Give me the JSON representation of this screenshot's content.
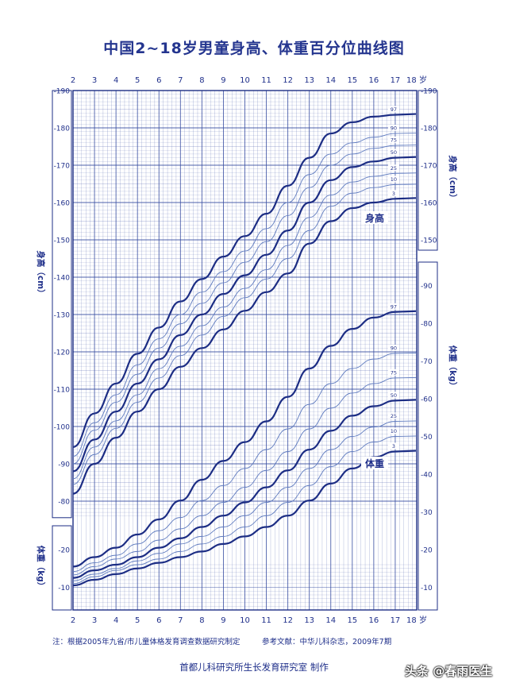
{
  "title": "中国2~18岁男童身高、体重百分位曲线图",
  "footnote_left": "注：根据2005年九省/市儿童体格发育调查数据研究制定",
  "footnote_right": "参考文献：中华儿科杂志，2009年7期",
  "maker": "首都儿科研究所生长发育研究室  制作",
  "watermark": "头条 @春雨医生",
  "colors": {
    "grid": "#3a4fa3",
    "curve": "#1c2d84",
    "thin_curve": "#5f7bbf",
    "text": "#1f2f8a"
  },
  "chart_data": [
    {
      "type": "line",
      "name_label": "身高",
      "xlabel": "岁",
      "ylabel": "身高（cm）",
      "x_ticks": [
        2,
        3,
        4,
        5,
        6,
        7,
        8,
        9,
        10,
        11,
        12,
        13,
        14,
        15,
        16,
        17,
        18
      ],
      "x_tick_labels": [
        "2",
        "3",
        "4",
        "5",
        "6",
        "7",
        "8",
        "9",
        "10",
        "11",
        "12",
        "13",
        "14",
        "15",
        "16",
        "17",
        "18 岁"
      ],
      "y_ticks_left": [
        80,
        90,
        100,
        110,
        120,
        130,
        140,
        150,
        160,
        170,
        180,
        190
      ],
      "y_ticks_right": [
        150,
        160,
        170,
        180,
        190
      ],
      "xlim": [
        2,
        18
      ],
      "ylim": [
        76,
        190
      ],
      "series": [
        {
          "name": "3",
          "x": [
            2,
            3,
            4,
            5,
            6,
            7,
            8,
            9,
            10,
            11,
            12,
            13,
            14,
            15,
            16,
            17
          ],
          "values": [
            82,
            90,
            97,
            104,
            110,
            116,
            121,
            126,
            131,
            136,
            141,
            149,
            155,
            158.5,
            160,
            161
          ]
        },
        {
          "name": "10",
          "x": [
            2,
            3,
            4,
            5,
            6,
            7,
            8,
            9,
            10,
            11,
            12,
            13,
            14,
            15,
            16,
            17
          ],
          "values": [
            84.5,
            92.5,
            99.5,
            106.5,
            113,
            119,
            124.5,
            129.5,
            134.5,
            139.5,
            145,
            152.5,
            159,
            162.5,
            164,
            164.8
          ]
        },
        {
          "name": "25",
          "x": [
            2,
            3,
            4,
            5,
            6,
            7,
            8,
            9,
            10,
            11,
            12,
            13,
            14,
            15,
            16,
            17
          ],
          "values": [
            86,
            94.5,
            101.5,
            108.5,
            115.5,
            121.5,
            127,
            132,
            137,
            142,
            148.5,
            156,
            162,
            165.5,
            167,
            167.8
          ]
        },
        {
          "name": "50",
          "x": [
            2,
            3,
            4,
            5,
            6,
            7,
            8,
            9,
            10,
            11,
            12,
            13,
            14,
            15,
            16,
            17
          ],
          "values": [
            88,
            96.5,
            104,
            111.5,
            118,
            124.5,
            130,
            135.5,
            140.5,
            146,
            152.5,
            160,
            166,
            169.5,
            171,
            172
          ]
        },
        {
          "name": "75",
          "x": [
            2,
            3,
            4,
            5,
            6,
            7,
            8,
            9,
            10,
            11,
            12,
            13,
            14,
            15,
            16,
            17
          ],
          "values": [
            90,
            99,
            106.5,
            114,
            121,
            127.5,
            133,
            138.5,
            144,
            149.5,
            156.5,
            164,
            170,
            173,
            174.5,
            175.3
          ]
        },
        {
          "name": "90",
          "x": [
            2,
            3,
            4,
            5,
            6,
            7,
            8,
            9,
            10,
            11,
            12,
            13,
            14,
            15,
            16,
            17
          ],
          "values": [
            92,
            101,
            108.5,
            116.5,
            123.5,
            130,
            136,
            141.5,
            147,
            153,
            160,
            167.5,
            173,
            176,
            177.5,
            178.5
          ]
        },
        {
          "name": "97",
          "x": [
            2,
            3,
            4,
            5,
            6,
            7,
            8,
            9,
            10,
            11,
            12,
            13,
            14,
            15,
            16,
            17
          ],
          "values": [
            94.5,
            103.5,
            111.5,
            119.5,
            126.5,
            133.5,
            139.5,
            145.5,
            151,
            157,
            164.5,
            172,
            178.5,
            181.5,
            183,
            183.5
          ]
        }
      ]
    },
    {
      "type": "line",
      "name_label": "体重",
      "xlabel": "岁",
      "ylabel": "体重（kg）",
      "x_ticks": [
        2,
        3,
        4,
        5,
        6,
        7,
        8,
        9,
        10,
        11,
        12,
        13,
        14,
        15,
        16,
        17,
        18
      ],
      "y_ticks_left": [
        10,
        20
      ],
      "y_ticks_right": [
        10,
        20,
        30,
        40,
        50,
        60,
        70,
        80,
        90
      ],
      "xlim": [
        2,
        18
      ],
      "ylim": [
        4,
        94
      ],
      "series": [
        {
          "name": "3",
          "x": [
            2,
            3,
            4,
            5,
            6,
            7,
            8,
            9,
            10,
            11,
            12,
            13,
            14,
            15,
            16,
            17
          ],
          "values": [
            10.5,
            12,
            13.5,
            15,
            16.5,
            18,
            19.5,
            21.5,
            23.5,
            26,
            29,
            33,
            37.5,
            41.5,
            44.5,
            46
          ]
        },
        {
          "name": "10",
          "x": [
            2,
            3,
            4,
            5,
            6,
            7,
            8,
            9,
            10,
            11,
            12,
            13,
            14,
            15,
            16,
            17
          ],
          "values": [
            11,
            12.8,
            14.5,
            16,
            17.5,
            19.5,
            21.5,
            23.5,
            26,
            29,
            32.5,
            37,
            42,
            46,
            48.5,
            50
          ]
        },
        {
          "name": "25",
          "x": [
            2,
            3,
            4,
            5,
            6,
            7,
            8,
            9,
            10,
            11,
            12,
            13,
            14,
            15,
            16,
            17
          ],
          "values": [
            11.7,
            13.5,
            15,
            17,
            19,
            21.5,
            23.5,
            26,
            29,
            32.5,
            36.5,
            41.5,
            46.5,
            50,
            52.5,
            54
          ]
        },
        {
          "name": "50",
          "x": [
            2,
            3,
            4,
            5,
            6,
            7,
            8,
            9,
            10,
            11,
            12,
            13,
            14,
            15,
            16,
            17
          ],
          "values": [
            12.5,
            14.5,
            16,
            18,
            20.5,
            23,
            26,
            29,
            32.5,
            36.5,
            41,
            46.5,
            51.5,
            55.5,
            58,
            59.5
          ]
        },
        {
          "name": "75",
          "x": [
            2,
            3,
            4,
            5,
            6,
            7,
            8,
            9,
            10,
            11,
            12,
            13,
            14,
            15,
            16,
            17
          ],
          "values": [
            13.3,
            15.5,
            17.5,
            19.5,
            22.5,
            25.5,
            29,
            32.5,
            36.5,
            41,
            46,
            52,
            57.5,
            61.5,
            64,
            65.5
          ]
        },
        {
          "name": "90",
          "x": [
            2,
            3,
            4,
            5,
            6,
            7,
            8,
            9,
            10,
            11,
            12,
            13,
            14,
            15,
            16,
            17
          ],
          "values": [
            14.2,
            16.5,
            18.5,
            21.5,
            25,
            28.5,
            33,
            37,
            41.5,
            46.5,
            52,
            58.5,
            64,
            68,
            70.5,
            72
          ]
        },
        {
          "name": "97",
          "x": [
            2,
            3,
            4,
            5,
            6,
            7,
            8,
            9,
            10,
            11,
            12,
            13,
            14,
            15,
            16,
            17
          ],
          "values": [
            15.5,
            18,
            20.5,
            24,
            28,
            33,
            38.5,
            43.5,
            48.5,
            54,
            60.5,
            68,
            74,
            78.5,
            81.5,
            83
          ]
        }
      ]
    }
  ]
}
